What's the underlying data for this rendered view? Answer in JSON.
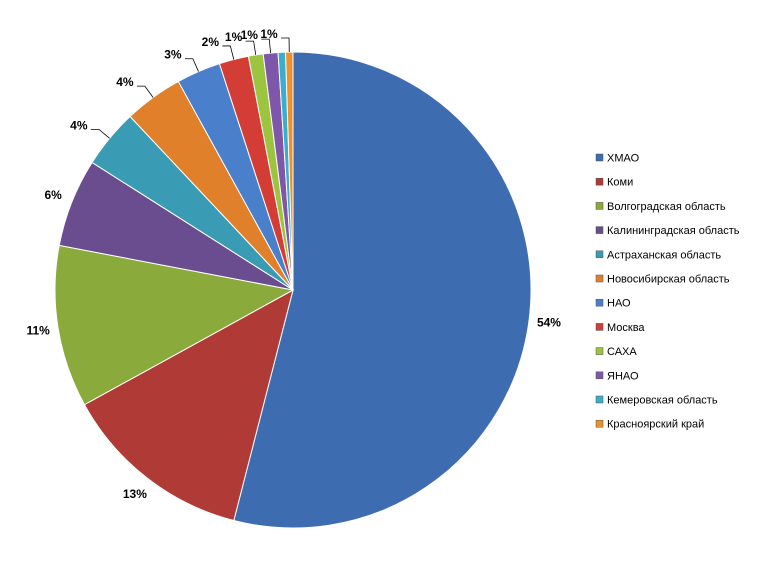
{
  "chart_data": {
    "type": "pie",
    "title": "",
    "legend_position": "right",
    "slices": [
      {
        "label": "ХМАО",
        "value": 54,
        "display": "54%",
        "color": "#3D6DB0"
      },
      {
        "label": "Коми",
        "value": 13,
        "display": "13%",
        "color": "#B03A36"
      },
      {
        "label": "Волгоградская область",
        "value": 11,
        "display": "11%",
        "color": "#8AAA3C"
      },
      {
        "label": "Калининградская область",
        "value": 6,
        "display": "6%",
        "color": "#6A4D8E"
      },
      {
        "label": "Астраханская область",
        "value": 4,
        "display": "4%",
        "color": "#3A9CB4"
      },
      {
        "label": "Новосибирская область",
        "value": 4,
        "display": "4%",
        "color": "#E0802A"
      },
      {
        "label": "НАО",
        "value": 3,
        "display": "3%",
        "color": "#4A7FCC"
      },
      {
        "label": "Москва",
        "value": 2,
        "display": "2%",
        "color": "#D43C36"
      },
      {
        "label": "САХА",
        "value": 1,
        "display": "1%",
        "color": "#9CC43E"
      },
      {
        "label": "ЯНАО",
        "value": 1,
        "display": "1%",
        "color": "#7E56AA"
      },
      {
        "label": "Кемеровская область",
        "value": 0.5,
        "display": "",
        "color": "#3AAFCB"
      },
      {
        "label": "Красноярский край",
        "value": 0.5,
        "display": "1%",
        "color": "#F0902C"
      }
    ]
  }
}
